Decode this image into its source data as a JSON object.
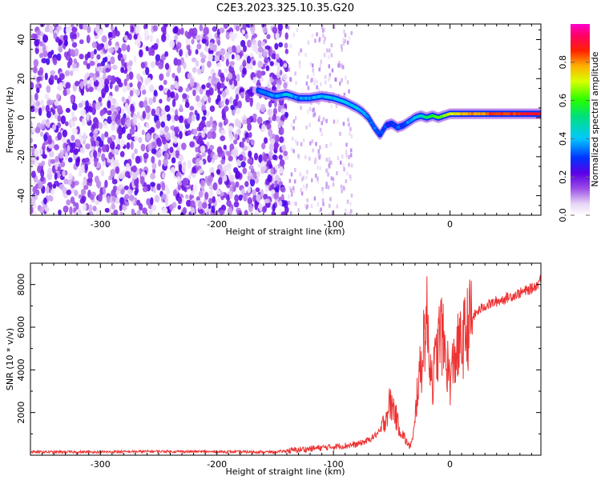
{
  "title": "C2E3.2023.325.10.35.G20",
  "colorbar": {
    "label": "Normalized spectral amplitude",
    "ticks": [
      0.0,
      0.2,
      0.4,
      0.6,
      0.8
    ],
    "tick_labels": [
      "0.0",
      "0.2",
      "0.4",
      "0.6",
      "0.8"
    ],
    "range": [
      0.0,
      1.0
    ],
    "colormap": "white-purple-blue-cyan-green-yellow-red-magenta"
  },
  "chart_data": [
    {
      "type": "heatmap",
      "xlabel": "Height of straight line (km)",
      "ylabel": "Frequency (Hz)",
      "xlim": [
        -360,
        78
      ],
      "ylim": [
        -50,
        48
      ],
      "xticks": [
        -300,
        -200,
        -100,
        0
      ],
      "xtick_labels": [
        "-300",
        "-200",
        "-100",
        "0"
      ],
      "yticks": [
        -40,
        -20,
        0,
        20,
        40
      ],
      "ytick_labels": [
        "-40",
        "-20",
        "0",
        "20",
        "40"
      ],
      "grid": false,
      "noise_region": {
        "x_range": [
          -360,
          -140
        ],
        "y_range": [
          -50,
          48
        ],
        "amplitude": 0.15
      },
      "sparse_region": {
        "x_range": [
          -140,
          -85
        ],
        "amplitude": 0.08
      },
      "signal_track": {
        "x": [
          -165,
          -150,
          -140,
          -130,
          -120,
          -110,
          -100,
          -90,
          -80,
          -75,
          -70,
          -65,
          -60,
          -55,
          -50,
          -45,
          -40,
          -35,
          -30,
          -25,
          -20,
          -15,
          -10,
          -5,
          0,
          10,
          20,
          30,
          40,
          50,
          60,
          70,
          78
        ],
        "freq": [
          14,
          11,
          12,
          10,
          10,
          11,
          10,
          8,
          5,
          3,
          0,
          -5,
          -9,
          -4,
          -3,
          -5,
          -4,
          -2,
          0,
          1,
          0,
          1,
          0,
          1,
          2,
          2,
          2,
          2,
          2,
          2,
          2,
          2,
          2
        ],
        "amplitude": [
          0.35,
          0.4,
          0.45,
          0.4,
          0.4,
          0.45,
          0.45,
          0.45,
          0.45,
          0.4,
          0.4,
          0.4,
          0.35,
          0.35,
          0.3,
          0.35,
          0.35,
          0.4,
          0.45,
          0.5,
          0.55,
          0.6,
          0.65,
          0.7,
          0.75,
          0.8,
          0.85,
          0.85,
          0.9,
          0.9,
          0.9,
          0.95,
          0.95
        ]
      }
    },
    {
      "type": "line",
      "xlabel": "Height of straight line (km)",
      "ylabel": "SNR (10 * v/v)",
      "xlim": [
        -360,
        78
      ],
      "ylim": [
        0,
        9000
      ],
      "xticks": [
        -300,
        -200,
        -100,
        0
      ],
      "xtick_labels": [
        "-300",
        "-200",
        "-100",
        "0"
      ],
      "yticks": [
        2000,
        4000,
        6000,
        8000
      ],
      "ytick_labels": [
        "2000",
        "4000",
        "6000",
        "8000"
      ],
      "grid": false,
      "series": [
        {
          "color": "#ee3333",
          "x": [
            -360,
            -300,
            -250,
            -200,
            -150,
            -130,
            -110,
            -100,
            -90,
            -80,
            -70,
            -60,
            -55,
            -52,
            -48,
            -45,
            -40,
            -35,
            -32,
            -30,
            -28,
            -25,
            -22,
            -20,
            -18,
            -15,
            -12,
            -10,
            -8,
            -5,
            -2,
            0,
            5,
            10,
            15,
            20,
            25,
            30,
            40,
            50,
            60,
            70,
            75,
            78
          ],
          "values": [
            150,
            150,
            180,
            160,
            150,
            250,
            350,
            400,
            450,
            500,
            700,
            1100,
            1800,
            2400,
            2200,
            1500,
            900,
            400,
            700,
            1500,
            3200,
            4000,
            5800,
            6400,
            5000,
            3500,
            4500,
            5200,
            6000,
            5000,
            4200,
            3500,
            4800,
            5200,
            6000,
            6500,
            6800,
            7000,
            7200,
            7400,
            7600,
            7800,
            8000,
            8300
          ]
        }
      ]
    }
  ]
}
